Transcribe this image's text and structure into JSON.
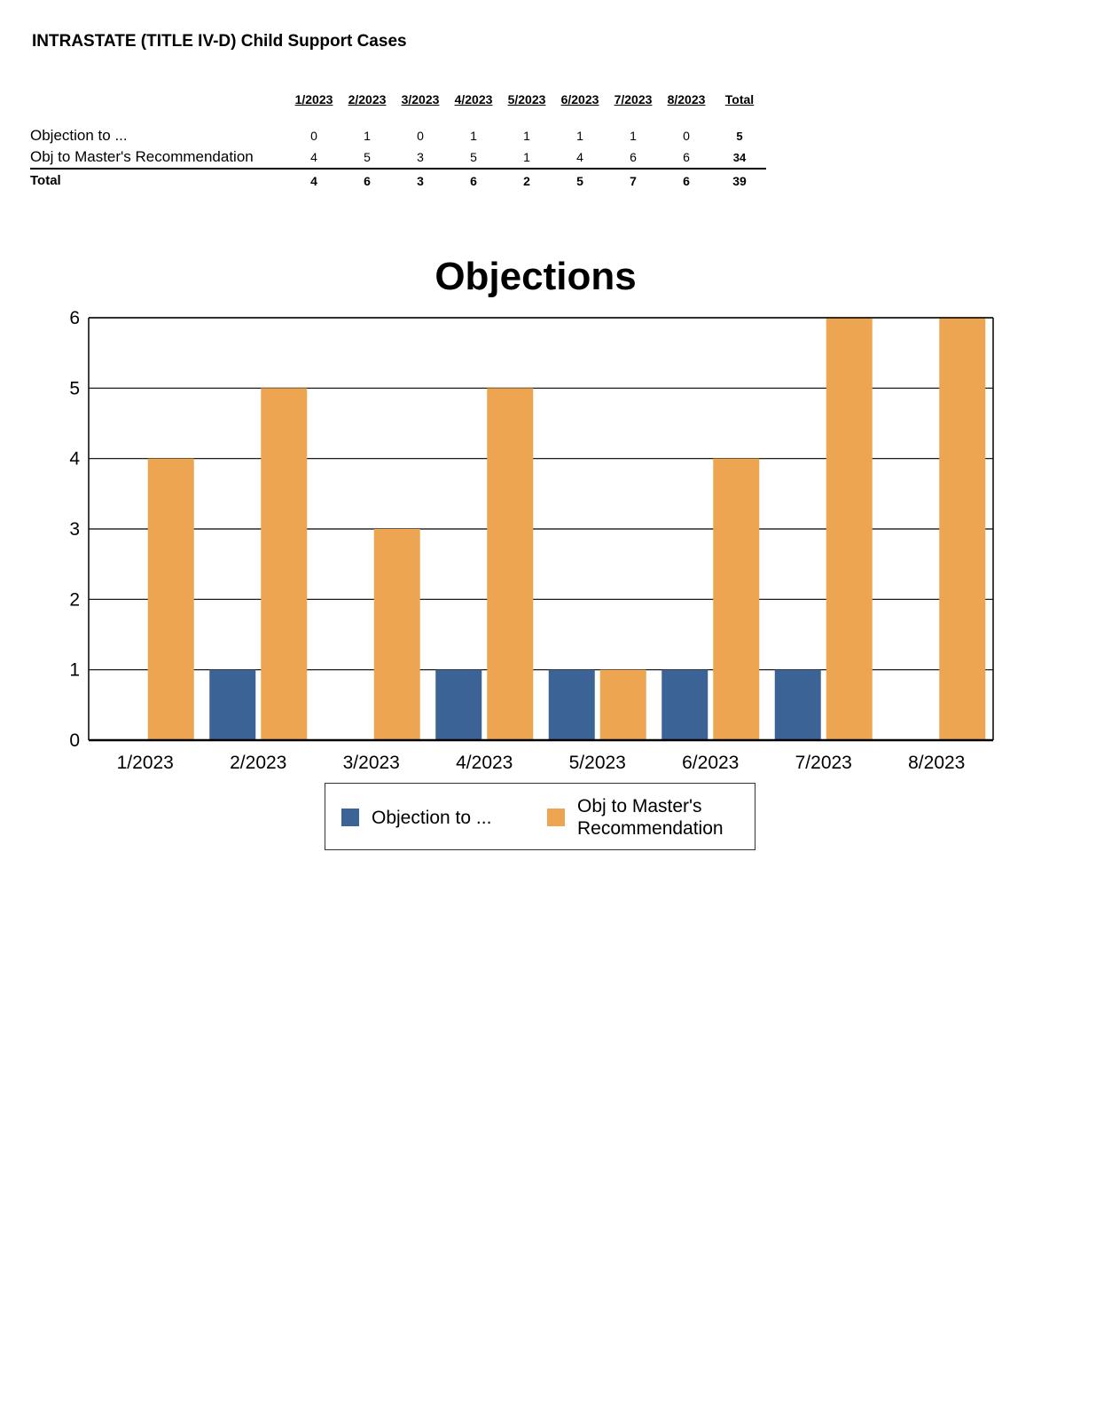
{
  "page": {
    "title": "INTRASTATE (TITLE IV-D) Child Support Cases"
  },
  "table": {
    "columns": [
      "1/2023",
      "2/2023",
      "3/2023",
      "4/2023",
      "5/2023",
      "6/2023",
      "7/2023",
      "8/2023",
      "Total"
    ],
    "rows": [
      {
        "label": "Objection to ...",
        "values": [
          "0",
          "1",
          "0",
          "1",
          "1",
          "1",
          "1",
          "0",
          "5"
        ]
      },
      {
        "label": "Obj to Master's Recommendation",
        "values": [
          "4",
          "5",
          "3",
          "5",
          "1",
          "4",
          "6",
          "6",
          "34"
        ]
      }
    ],
    "total": {
      "label": "Total",
      "values": [
        "4",
        "6",
        "3",
        "6",
        "2",
        "5",
        "7",
        "6",
        "39"
      ]
    }
  },
  "chart_data": {
    "type": "bar",
    "title": "Objections",
    "xlabel": "",
    "ylabel": "",
    "categories": [
      "1/2023",
      "2/2023",
      "3/2023",
      "4/2023",
      "5/2023",
      "6/2023",
      "7/2023",
      "8/2023"
    ],
    "series": [
      {
        "name": "Objection to ...",
        "values": [
          0,
          1,
          0,
          1,
          1,
          1,
          1,
          0
        ],
        "color": "#3b6395"
      },
      {
        "name": "Obj to Master's Recommendation",
        "values": [
          4,
          5,
          3,
          5,
          1,
          4,
          6,
          6
        ],
        "color": "#eda551"
      }
    ],
    "ylim": [
      0,
      6
    ],
    "yticks": [
      0,
      1,
      2,
      3,
      4,
      5,
      6
    ],
    "grid": true,
    "legend": "bottom"
  }
}
